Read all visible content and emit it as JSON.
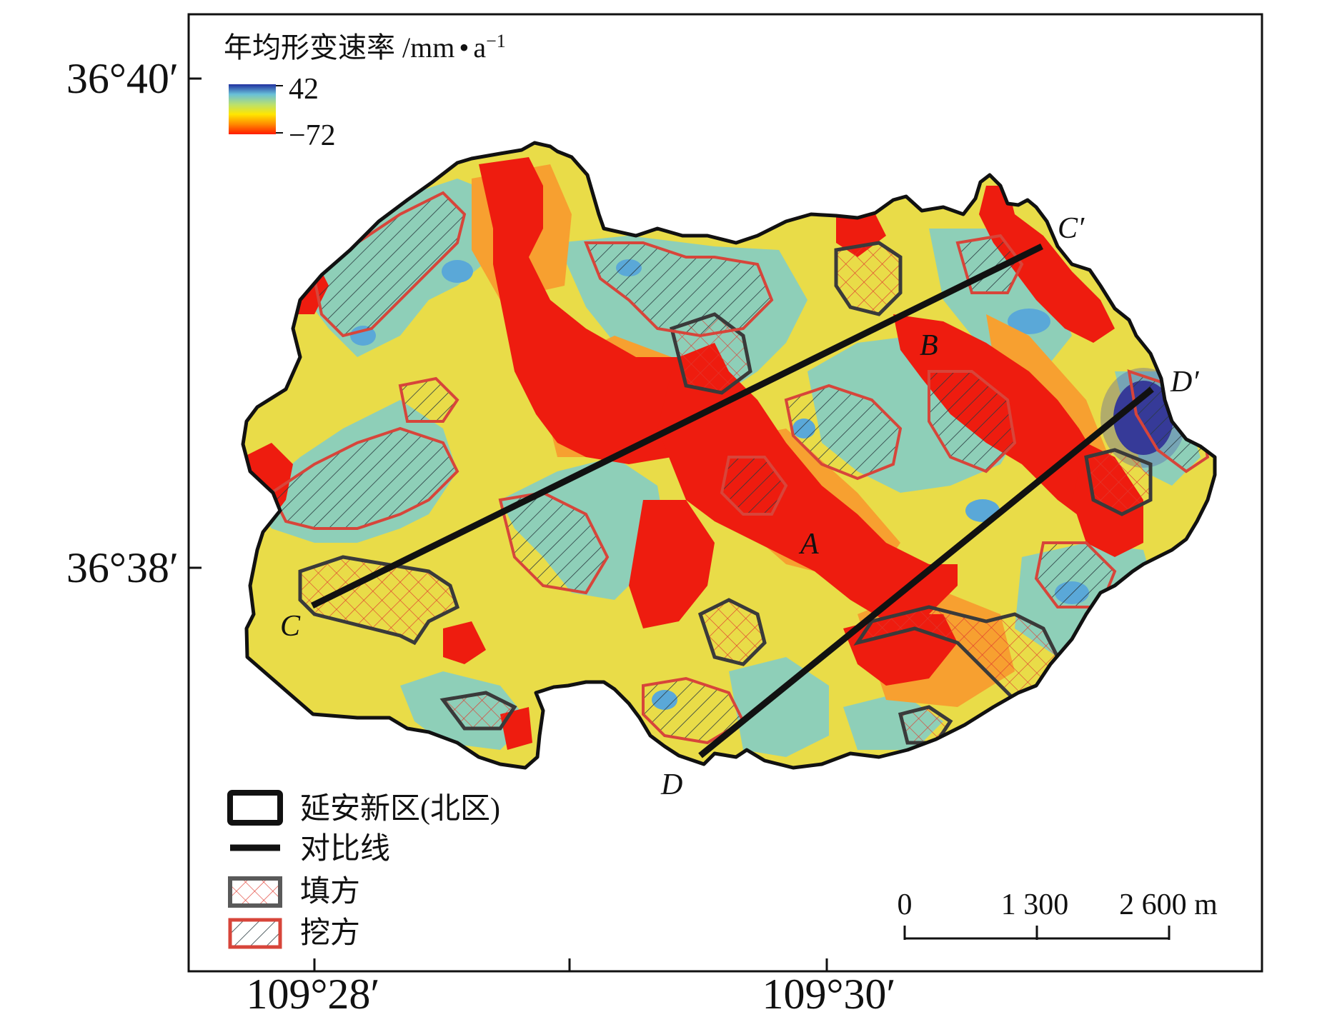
{
  "map": {
    "lat_labels": [
      "36°40′",
      "36°38′"
    ],
    "lon_labels": [
      "109°28′",
      "109°30′"
    ],
    "colorbar": {
      "title": "年均形变速率 /mm",
      "unit_a": "a",
      "unit_exp": "−1",
      "max_label": "42",
      "min_label": "−72",
      "colors": [
        "#ff1a00",
        "#ff8a00",
        "#ffe600",
        "#b8e070",
        "#68c0d8",
        "#2030a0"
      ]
    },
    "profile_labels": {
      "C_start": "C",
      "C_end": "C′",
      "D_start": "D",
      "D_end": "D′"
    },
    "point_labels": {
      "A": "A",
      "B": "B"
    },
    "legend": [
      {
        "label": "延安新区(北区)"
      },
      {
        "label": "对比线"
      },
      {
        "label": "填方"
      },
      {
        "label": "挖方"
      }
    ],
    "scale_bar": {
      "labels": [
        "0",
        "1 300",
        "2 600 m"
      ]
    },
    "colors": {
      "deformation_high": "#ee1c0f",
      "deformation_mid": "#f2d93a",
      "deformation_low": "#8ecfb8",
      "uplift": "#2b2d8c",
      "fill_outline": "#3a3a3a",
      "cut_outline": "#d7453a",
      "boundary": "#111111"
    }
  }
}
